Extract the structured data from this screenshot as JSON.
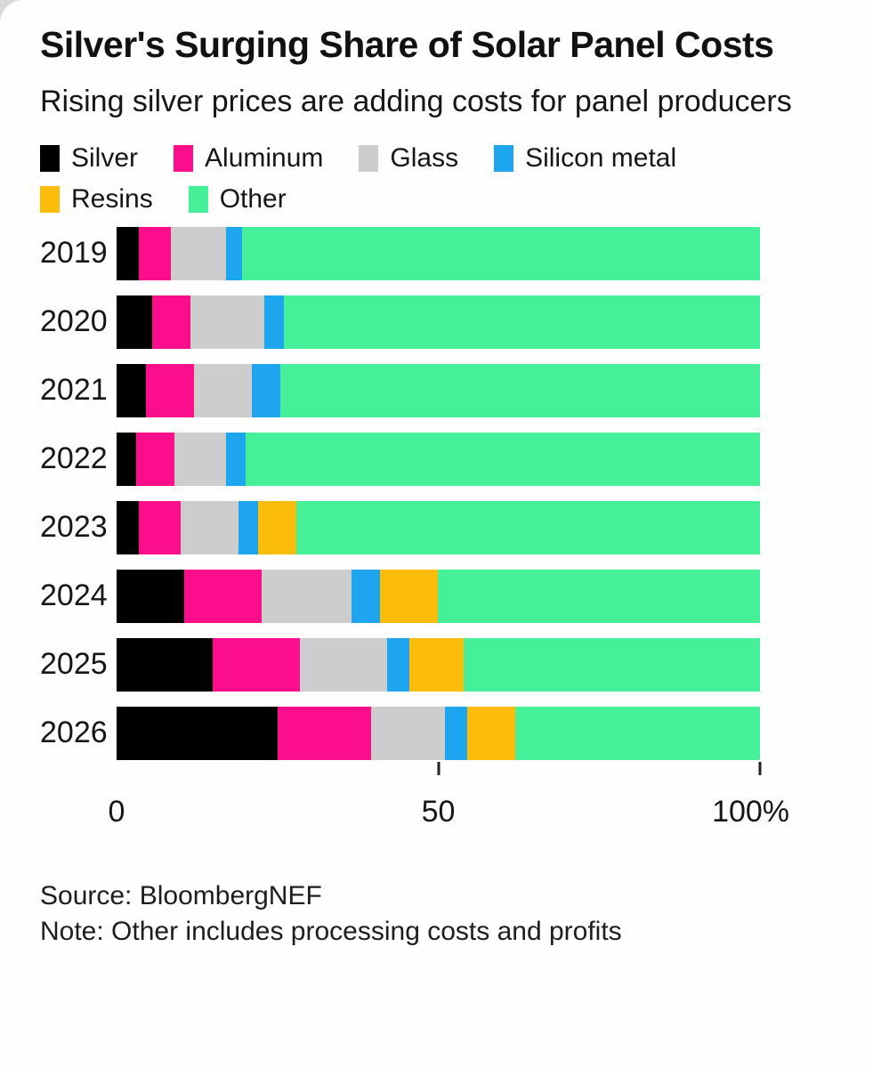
{
  "header": {
    "title": "Silver's Surging Share of Solar Panel Costs",
    "subtitle": "Rising silver prices are adding costs for panel producers"
  },
  "chart_data": {
    "type": "bar",
    "orientation": "horizontal",
    "stacked": true,
    "unit": "percent",
    "title": "Silver's Surging Share of Solar Panel Costs",
    "xlabel": "",
    "ylabel": "",
    "xlim": [
      0,
      100
    ],
    "grid": false,
    "legend_position": "top",
    "legend_row_break": 4,
    "categories": [
      "2019",
      "2020",
      "2021",
      "2022",
      "2023",
      "2024",
      "2025",
      "2026"
    ],
    "series": [
      {
        "name": "Silver",
        "color": "#000000",
        "values": [
          3.5,
          5.5,
          4.5,
          3.0,
          3.5,
          10.5,
          15.0,
          25.0
        ]
      },
      {
        "name": "Aluminum",
        "color": "#fb0d8b",
        "values": [
          5.0,
          6.0,
          7.5,
          6.0,
          6.5,
          12.0,
          13.5,
          14.5
        ]
      },
      {
        "name": "Glass",
        "color": "#cdcdcd",
        "values": [
          8.5,
          11.5,
          9.0,
          8.0,
          9.0,
          14.0,
          13.5,
          11.5
        ]
      },
      {
        "name": "Silicon metal",
        "color": "#1da5f0",
        "values": [
          2.5,
          3.0,
          4.5,
          3.0,
          3.0,
          4.5,
          3.5,
          3.5
        ]
      },
      {
        "name": "Resins",
        "color": "#fbbd0a",
        "values": [
          0,
          0,
          0,
          0,
          6.0,
          9.0,
          8.5,
          7.5
        ]
      },
      {
        "name": "Other",
        "color": "#45f099",
        "values": [
          80.5,
          74.0,
          74.5,
          80.0,
          72.0,
          50.0,
          46.0,
          38.0
        ]
      }
    ],
    "x_ticks": [
      {
        "label": "0",
        "pos": 0,
        "tick": false
      },
      {
        "label": "50",
        "pos": 50,
        "tick": true
      },
      {
        "label": "100%",
        "pos": 100,
        "tick": true
      }
    ]
  },
  "footer": {
    "source": "Source: BloombergNEF",
    "note": "Note: Other includes processing costs and profits"
  }
}
